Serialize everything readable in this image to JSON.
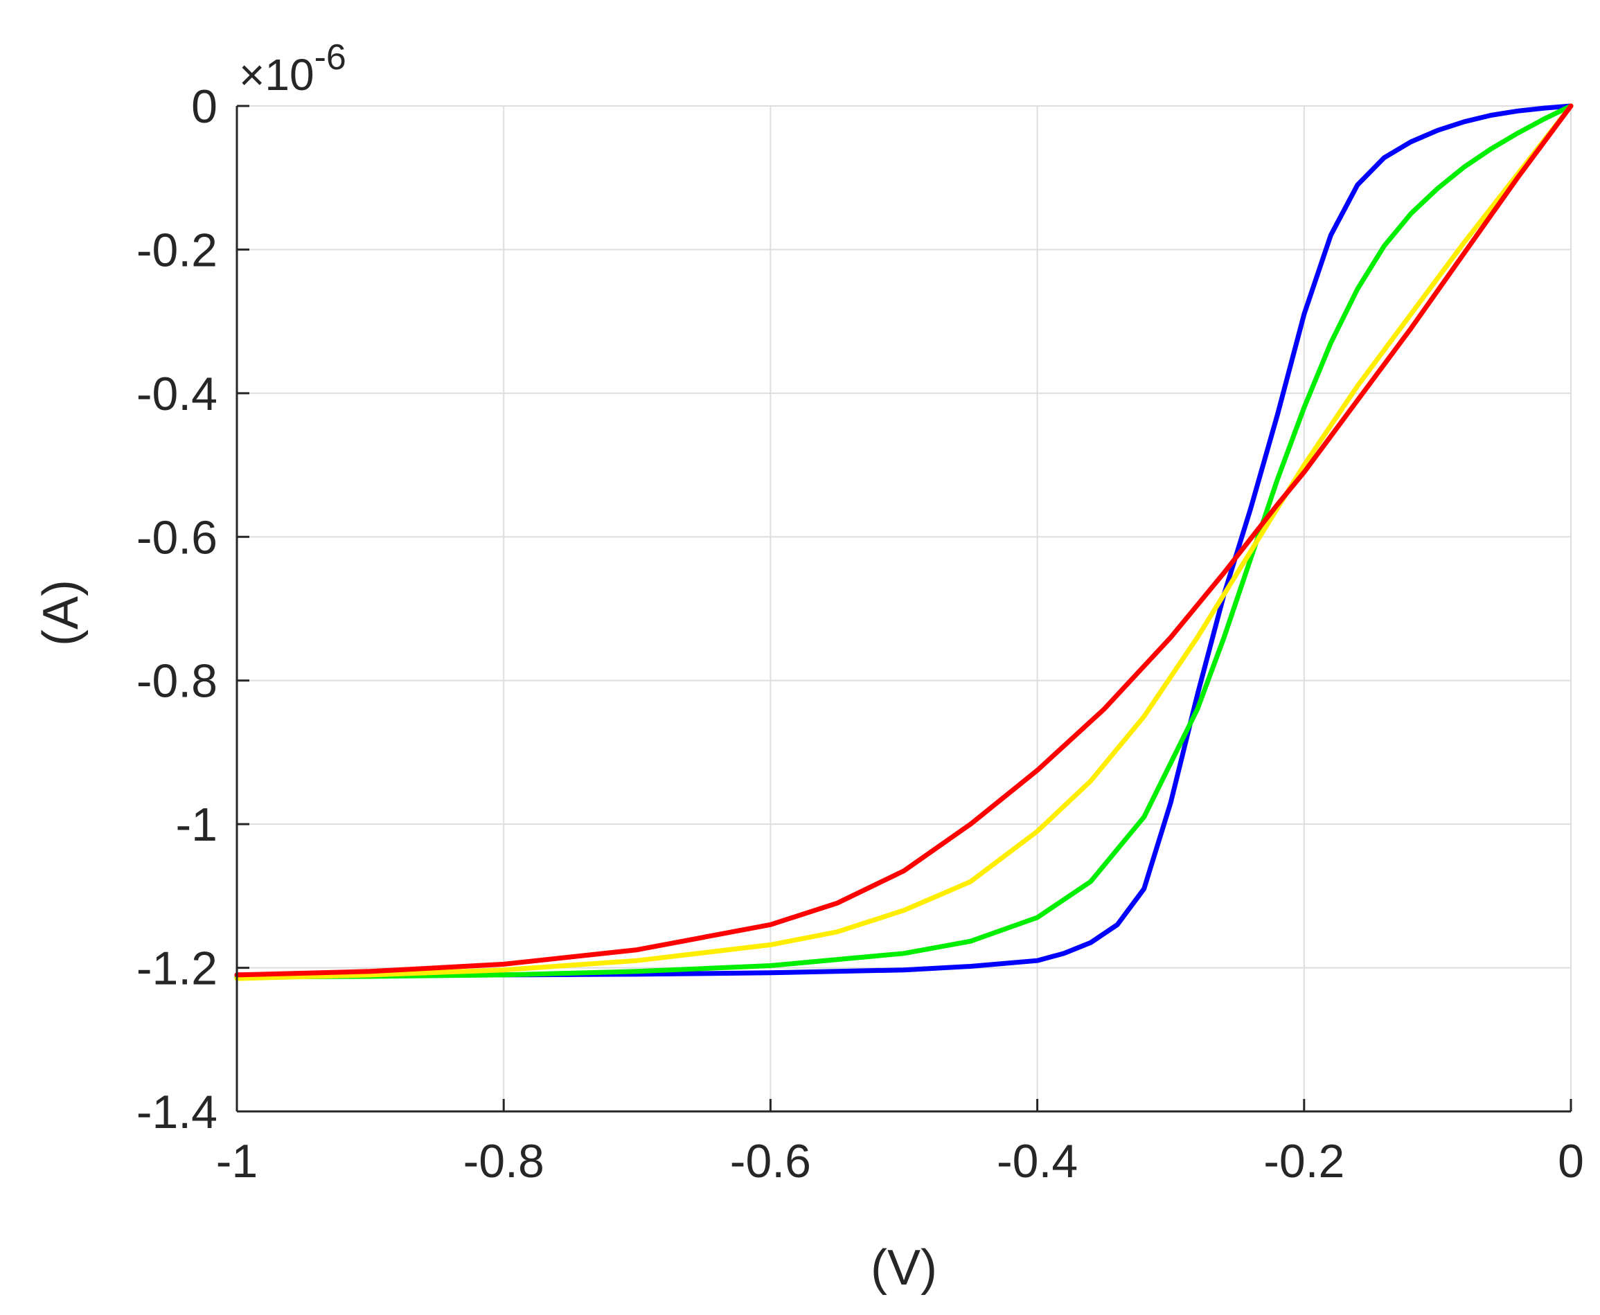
{
  "chart_data": {
    "type": "line",
    "xlabel": "(V)",
    "ylabel": "(A)",
    "y_exponent_label": "×10",
    "y_exponent_power": "-6",
    "xlim": [
      -1,
      0
    ],
    "ylim": [
      -1.4,
      0
    ],
    "y_scale_factor": 1e-06,
    "grid": true,
    "x_ticks": [
      -1,
      -0.8,
      -0.6,
      -0.4,
      -0.2,
      0
    ],
    "x_tick_labels": [
      "-1",
      "-0.8",
      "-0.6",
      "-0.4",
      "-0.2",
      "0"
    ],
    "y_ticks": [
      0,
      -0.2,
      -0.4,
      -0.6,
      -0.8,
      -1,
      -1.2,
      -1.4
    ],
    "y_tick_labels": [
      "0",
      "-0.2",
      "-0.4",
      "-0.6",
      "-0.8",
      "-1",
      "-1.2",
      "-1.4"
    ],
    "series": [
      {
        "color": "#0000ff",
        "x": [
          -1,
          -0.9,
          -0.8,
          -0.7,
          -0.6,
          -0.5,
          -0.45,
          -0.4,
          -0.38,
          -0.36,
          -0.34,
          -0.32,
          -0.3,
          -0.28,
          -0.26,
          -0.24,
          -0.22,
          -0.2,
          -0.18,
          -0.16,
          -0.14,
          -0.12,
          -0.1,
          -0.08,
          -0.06,
          -0.04,
          -0.02,
          0
        ],
        "y": [
          -1.21,
          -1.21,
          -1.21,
          -1.209,
          -1.207,
          -1.203,
          -1.198,
          -1.19,
          -1.18,
          -1.165,
          -1.14,
          -1.09,
          -0.97,
          -0.82,
          -0.68,
          -0.56,
          -0.43,
          -0.29,
          -0.18,
          -0.11,
          -0.072,
          -0.05,
          -0.034,
          -0.022,
          -0.013,
          -0.007,
          -0.003,
          0
        ]
      },
      {
        "color": "#00ee00",
        "x": [
          -1,
          -0.9,
          -0.8,
          -0.7,
          -0.6,
          -0.5,
          -0.45,
          -0.4,
          -0.36,
          -0.32,
          -0.28,
          -0.26,
          -0.24,
          -0.22,
          -0.2,
          -0.18,
          -0.16,
          -0.14,
          -0.12,
          -0.1,
          -0.08,
          -0.06,
          -0.04,
          -0.02,
          0
        ],
        "y": [
          -1.213,
          -1.212,
          -1.21,
          -1.205,
          -1.197,
          -1.18,
          -1.163,
          -1.13,
          -1.08,
          -0.99,
          -0.84,
          -0.74,
          -0.63,
          -0.52,
          -0.42,
          -0.33,
          -0.255,
          -0.195,
          -0.15,
          -0.115,
          -0.085,
          -0.06,
          -0.038,
          -0.018,
          0
        ]
      },
      {
        "color": "#ffee00",
        "x": [
          -1,
          -0.9,
          -0.8,
          -0.7,
          -0.6,
          -0.55,
          -0.5,
          -0.45,
          -0.4,
          -0.36,
          -0.32,
          -0.28,
          -0.24,
          -0.22,
          -0.2,
          -0.16,
          -0.12,
          -0.08,
          -0.04,
          0
        ],
        "y": [
          -1.215,
          -1.21,
          -1.203,
          -1.19,
          -1.168,
          -1.15,
          -1.12,
          -1.08,
          -1.01,
          -0.94,
          -0.85,
          -0.74,
          -0.62,
          -0.56,
          -0.5,
          -0.39,
          -0.29,
          -0.19,
          -0.095,
          0
        ]
      },
      {
        "color": "#ff0000",
        "x": [
          -1,
          -0.9,
          -0.8,
          -0.7,
          -0.6,
          -0.55,
          -0.5,
          -0.45,
          -0.4,
          -0.35,
          -0.3,
          -0.26,
          -0.22,
          -0.2,
          -0.16,
          -0.12,
          -0.08,
          -0.04,
          0
        ],
        "y": [
          -1.21,
          -1.205,
          -1.195,
          -1.175,
          -1.14,
          -1.11,
          -1.065,
          -1.0,
          -0.925,
          -0.84,
          -0.74,
          -0.65,
          -0.555,
          -0.51,
          -0.41,
          -0.31,
          -0.205,
          -0.1,
          0
        ]
      }
    ]
  }
}
